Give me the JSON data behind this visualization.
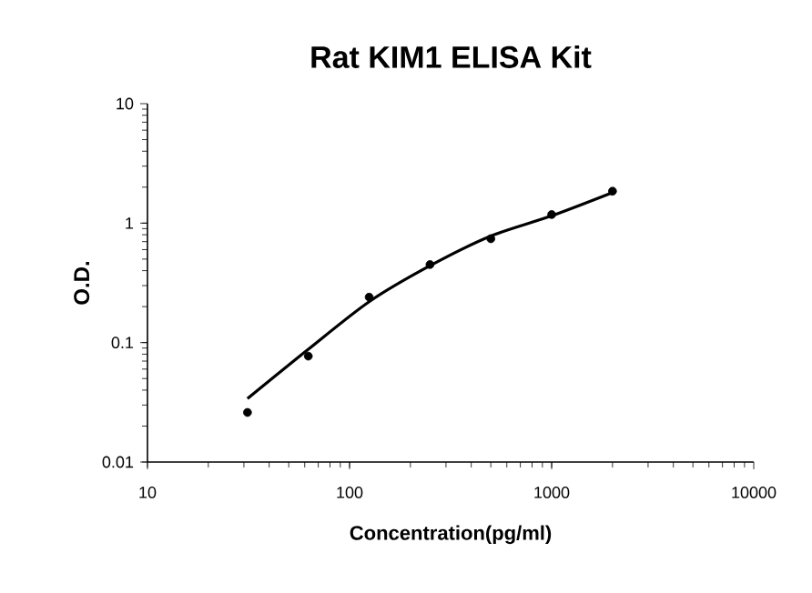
{
  "chart_data": {
    "type": "scatter",
    "title": "Rat KIM1 ELISA Kit",
    "xlabel": "Concentration(pg/ml)",
    "ylabel": "O.D.",
    "log": "xy",
    "xlim": [
      10,
      10000
    ],
    "xticks": [
      10,
      100,
      1000,
      10000
    ],
    "ylim": [
      0.01,
      10
    ],
    "yticks": [
      0.01,
      0.1,
      1,
      10
    ],
    "grid": false,
    "series": [
      {
        "marker": "circle",
        "color": "#000000",
        "x": [
          31.25,
          62.5,
          125,
          250,
          500,
          1000,
          2000
        ],
        "values": [
          0.026,
          0.077,
          0.24,
          0.45,
          0.74,
          1.18,
          1.85
        ]
      },
      {
        "type": "line",
        "marker": "none",
        "color": "#000000",
        "x": [
          31.25,
          62.5,
          125,
          250,
          500,
          1000,
          2000
        ],
        "values": [
          0.034,
          0.088,
          0.22,
          0.44,
          0.78,
          1.15,
          1.8
        ]
      }
    ]
  }
}
